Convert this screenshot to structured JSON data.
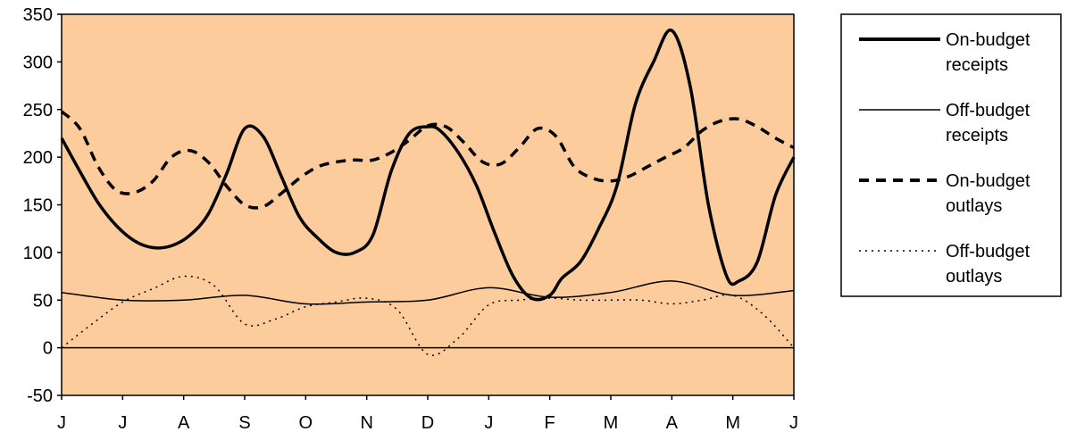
{
  "chart_data": {
    "type": "line",
    "categories": [
      "J",
      "J",
      "A",
      "S",
      "O",
      "N",
      "D",
      "J",
      "F",
      "M",
      "A",
      "M",
      "J"
    ],
    "ylim": [
      -50,
      350
    ],
    "yticks": [
      350,
      300,
      250,
      200,
      150,
      100,
      50,
      0,
      -50
    ],
    "grid": false,
    "legend_position": "right",
    "plot_background": "#FCCC9C",
    "series": [
      {
        "name_lines": [
          "On-budget",
          "receipts"
        ],
        "style": "thick-solid",
        "x": [
          0,
          0.3,
          0.6,
          0.9,
          1.2,
          1.5,
          1.8,
          2.1,
          2.4,
          2.7,
          3.0,
          3.3,
          3.6,
          3.9,
          4.2,
          4.5,
          4.8,
          5.1,
          5.4,
          5.7,
          6.0,
          6.2,
          6.5,
          6.8,
          7.1,
          7.4,
          7.7,
          8.0,
          8.2,
          8.5,
          8.8,
          9.1,
          9.4,
          9.7,
          10.0,
          10.3,
          10.6,
          10.9,
          11.1,
          11.4,
          11.7,
          12.0
        ],
        "values": [
          220,
          185,
          152,
          128,
          112,
          105,
          107,
          118,
          140,
          182,
          230,
          222,
          180,
          137,
          115,
          100,
          100,
          118,
          185,
          225,
          232,
          228,
          205,
          170,
          120,
          75,
          52,
          55,
          73,
          90,
          125,
          170,
          255,
          300,
          333,
          275,
          150,
          75,
          70,
          90,
          160,
          200
        ]
      },
      {
        "name_lines": [
          "Off-budget",
          "receipts"
        ],
        "style": "thin-solid",
        "x": [
          0,
          1,
          2,
          3,
          4,
          5,
          6,
          7,
          8,
          9,
          10,
          11,
          12
        ],
        "values": [
          58,
          50,
          50,
          55,
          46,
          48,
          50,
          63,
          53,
          58,
          70,
          55,
          60
        ]
      },
      {
        "name_lines": [
          "On-budget",
          "outlays"
        ],
        "style": "thick-dashed",
        "x": [
          0,
          0.3,
          0.6,
          0.9,
          1.2,
          1.5,
          1.8,
          2.1,
          2.4,
          2.7,
          3.0,
          3.3,
          3.6,
          3.9,
          4.2,
          4.5,
          4.8,
          5.1,
          5.4,
          5.7,
          6.0,
          6.3,
          6.6,
          6.9,
          7.2,
          7.5,
          7.8,
          8.1,
          8.4,
          8.7,
          9.0,
          9.3,
          9.6,
          9.9,
          10.2,
          10.5,
          10.8,
          11.1,
          11.4,
          11.7,
          12.0
        ],
        "values": [
          248,
          230,
          190,
          165,
          163,
          175,
          200,
          207,
          195,
          170,
          150,
          148,
          162,
          178,
          190,
          195,
          197,
          197,
          205,
          218,
          233,
          232,
          215,
          195,
          193,
          210,
          230,
          222,
          190,
          178,
          175,
          180,
          190,
          200,
          210,
          228,
          238,
          240,
          232,
          220,
          210
        ]
      },
      {
        "name_lines": [
          "Off-budget",
          "outlays"
        ],
        "style": "thin-dotted",
        "x": [
          0,
          0.5,
          1,
          1.5,
          2,
          2.5,
          3,
          3.5,
          4,
          4.5,
          5,
          5.5,
          6,
          6.5,
          7,
          7.5,
          8,
          8.5,
          9,
          9.5,
          10,
          10.5,
          11,
          11.5,
          12
        ],
        "values": [
          0,
          25,
          48,
          62,
          75,
          65,
          25,
          30,
          43,
          48,
          52,
          40,
          -7,
          10,
          45,
          50,
          52,
          50,
          50,
          50,
          46,
          50,
          55,
          35,
          0
        ]
      }
    ]
  }
}
